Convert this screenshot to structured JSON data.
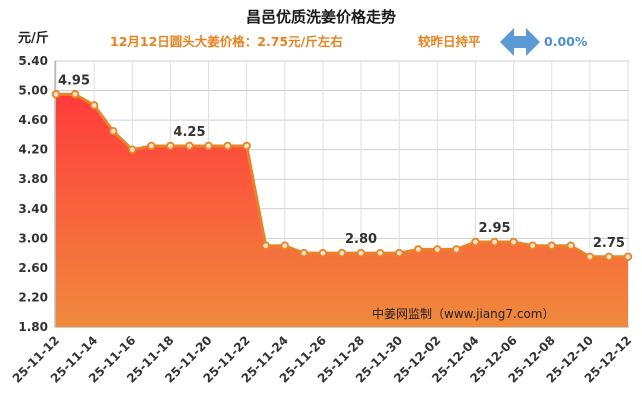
{
  "header": {
    "title": "昌邑优质洗姜价格走势",
    "subtitle": "12月12日圆头大姜价格：2.75元/斤左右",
    "compare_label": "较昨日持平",
    "change_pct": "0.00%",
    "arrow_icon": "left-right-arrow-icon",
    "arrow_color": "#5b9bd5"
  },
  "watermark": "中姜网监制（www.jiang7.com）",
  "chart_data": {
    "type": "area",
    "title": "昌邑优质洗姜价格走势",
    "ylabel": "元/斤",
    "xlabel": "",
    "ylim": [
      1.8,
      5.4
    ],
    "yticks": [
      "5.40",
      "5.00",
      "4.60",
      "4.20",
      "3.80",
      "3.40",
      "3.00",
      "2.60",
      "2.20",
      "1.80"
    ],
    "x_tick_labels": [
      "25-11-12",
      "25-11-14",
      "25-11-16",
      "25-11-18",
      "25-11-20",
      "25-11-22",
      "25-11-24",
      "25-11-26",
      "25-11-28",
      "25-11-30",
      "25-12-02",
      "25-12-04",
      "25-12-06",
      "25-12-08",
      "25-12-10",
      "25-12-12"
    ],
    "x": [
      "25-11-12",
      "25-11-13",
      "25-11-14",
      "25-11-15",
      "25-11-16",
      "25-11-17",
      "25-11-18",
      "25-11-19",
      "25-11-20",
      "25-11-21",
      "25-11-22",
      "25-11-23",
      "25-11-24",
      "25-11-25",
      "25-11-26",
      "25-11-27",
      "25-11-28",
      "25-11-29",
      "25-11-30",
      "25-12-01",
      "25-12-02",
      "25-12-03",
      "25-12-04",
      "25-12-05",
      "25-12-06",
      "25-12-07",
      "25-12-08",
      "25-12-09",
      "25-12-10",
      "25-12-11",
      "25-12-12"
    ],
    "series": [
      {
        "values": [
          4.95,
          4.95,
          4.8,
          4.45,
          4.2,
          4.25,
          4.25,
          4.25,
          4.25,
          4.25,
          4.25,
          2.9,
          2.9,
          2.8,
          2.8,
          2.8,
          2.8,
          2.8,
          2.8,
          2.85,
          2.85,
          2.85,
          2.95,
          2.95,
          2.95,
          2.9,
          2.9,
          2.9,
          2.75,
          2.75,
          2.75
        ],
        "color": "#e8832a"
      }
    ],
    "data_labels": [
      {
        "x": "25-11-12",
        "text": "4.95"
      },
      {
        "x": "25-11-19",
        "text": "4.25"
      },
      {
        "x": "25-11-28",
        "text": "2.80"
      },
      {
        "x": "25-12-05",
        "text": "2.95"
      },
      {
        "x": "25-12-11",
        "text": "2.75"
      }
    ],
    "fill_gradient": {
      "top": "#ff3b3b",
      "bottom": "#f08a3c"
    },
    "grid": true,
    "legend": "none"
  }
}
